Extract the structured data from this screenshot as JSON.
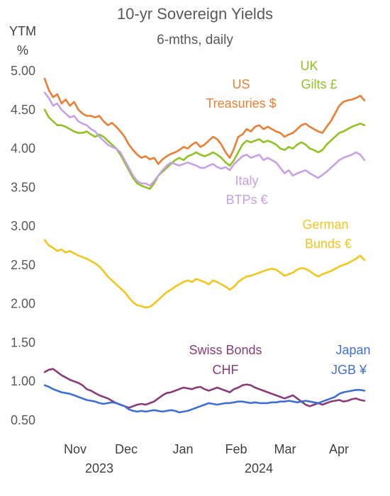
{
  "chart_data": {
    "type": "line",
    "title": "10-yr Sovereign Yields",
    "subtitle": "6-mths, daily",
    "ylabel_lines": [
      "YTM",
      "%"
    ],
    "ylim": [
      0.5,
      5.0
    ],
    "yticks": [
      "5.00",
      "4.50",
      "4.00",
      "3.50",
      "3.00",
      "2.50",
      "2.00",
      "1.50",
      "1.00",
      "0.50"
    ],
    "ytick_values": [
      5.0,
      4.5,
      4.0,
      3.5,
      3.0,
      2.5,
      2.0,
      1.5,
      1.0,
      0.5
    ],
    "month_ticks": [
      "Nov",
      "Dec",
      "Jan",
      "Feb",
      "Mar",
      "Apr"
    ],
    "year_labels": [
      "2023",
      "2024"
    ],
    "grid": false,
    "legend": "inline labels",
    "series": [
      {
        "key": "us",
        "label_lines": [
          "US",
          "Treasuries $"
        ],
        "color": "#ED7D31",
        "values": [
          4.9,
          4.75,
          4.66,
          4.7,
          4.58,
          4.63,
          4.55,
          4.6,
          4.5,
          4.45,
          4.42,
          4.42,
          4.4,
          4.42,
          4.35,
          4.3,
          4.33,
          4.28,
          4.22,
          4.15,
          4.05,
          3.98,
          3.92,
          3.88,
          3.9,
          3.86,
          3.88,
          3.8,
          3.86,
          3.9,
          3.93,
          3.95,
          3.98,
          4.02,
          4.0,
          4.05,
          4.08,
          4.02,
          4.05,
          4.1,
          4.15,
          4.12,
          4.05,
          3.95,
          3.88,
          4.0,
          4.15,
          4.18,
          4.25,
          4.22,
          4.28,
          4.3,
          4.25,
          4.28,
          4.25,
          4.22,
          4.2,
          4.15,
          4.18,
          4.2,
          4.25,
          4.3,
          4.32,
          4.28,
          4.25,
          4.22,
          4.2,
          4.28,
          4.35,
          4.45,
          4.55,
          4.6,
          4.62,
          4.63,
          4.65,
          4.68,
          4.62
        ]
      },
      {
        "key": "uk",
        "label_lines": [
          "UK",
          "Gilts £"
        ],
        "color": "#8FC31F",
        "values": [
          4.5,
          4.4,
          4.35,
          4.3,
          4.3,
          4.28,
          4.25,
          4.22,
          4.2,
          4.2,
          4.22,
          4.18,
          4.15,
          4.18,
          4.15,
          4.1,
          4.05,
          4.0,
          3.92,
          3.82,
          3.72,
          3.62,
          3.55,
          3.52,
          3.5,
          3.48,
          3.55,
          3.65,
          3.7,
          3.75,
          3.8,
          3.85,
          3.88,
          3.85,
          3.9,
          3.92,
          3.95,
          3.92,
          3.9,
          3.92,
          3.95,
          3.92,
          3.88,
          3.82,
          3.78,
          3.85,
          3.95,
          4.05,
          4.1,
          4.08,
          4.1,
          4.12,
          4.08,
          4.1,
          4.08,
          4.05,
          4.0,
          3.98,
          4.02,
          4.0,
          4.05,
          4.08,
          4.05,
          4.0,
          3.98,
          3.95,
          3.98,
          4.05,
          4.1,
          4.15,
          4.2,
          4.22,
          4.25,
          4.28,
          4.3,
          4.32,
          4.3
        ]
      },
      {
        "key": "italy",
        "label_lines": [
          "Italy",
          "BTPs €"
        ],
        "color": "#C9A0E8",
        "values": [
          4.72,
          4.65,
          4.55,
          4.58,
          4.5,
          4.45,
          4.4,
          4.42,
          4.35,
          4.32,
          4.3,
          4.25,
          4.22,
          4.15,
          4.1,
          4.05,
          4.02,
          4.0,
          3.95,
          3.85,
          3.75,
          3.65,
          3.58,
          3.55,
          3.55,
          3.52,
          3.58,
          3.65,
          3.72,
          3.78,
          3.82,
          3.8,
          3.78,
          3.8,
          3.82,
          3.8,
          3.78,
          3.75,
          3.75,
          3.78,
          3.8,
          3.76,
          3.74,
          3.76,
          3.72,
          3.8,
          3.85,
          3.9,
          3.92,
          3.88,
          3.9,
          3.92,
          3.85,
          3.88,
          3.85,
          3.82,
          3.75,
          3.68,
          3.72,
          3.65,
          3.68,
          3.7,
          3.72,
          3.68,
          3.65,
          3.62,
          3.66,
          3.7,
          3.75,
          3.8,
          3.85,
          3.88,
          3.9,
          3.92,
          3.95,
          3.92,
          3.85
        ]
      },
      {
        "key": "germany",
        "label_lines": [
          "German",
          "Bunds €"
        ],
        "color": "#F5C518",
        "values": [
          2.82,
          2.75,
          2.72,
          2.68,
          2.7,
          2.66,
          2.68,
          2.65,
          2.62,
          2.6,
          2.58,
          2.55,
          2.52,
          2.48,
          2.42,
          2.35,
          2.3,
          2.25,
          2.2,
          2.15,
          2.08,
          2.02,
          1.98,
          1.97,
          1.95,
          1.96,
          2.0,
          2.05,
          2.1,
          2.15,
          2.18,
          2.22,
          2.25,
          2.28,
          2.3,
          2.28,
          2.32,
          2.3,
          2.28,
          2.25,
          2.3,
          2.28,
          2.25,
          2.22,
          2.18,
          2.22,
          2.28,
          2.32,
          2.35,
          2.36,
          2.38,
          2.4,
          2.42,
          2.44,
          2.45,
          2.44,
          2.4,
          2.36,
          2.38,
          2.4,
          2.44,
          2.46,
          2.45,
          2.42,
          2.38,
          2.35,
          2.38,
          2.4,
          2.42,
          2.45,
          2.48,
          2.5,
          2.52,
          2.55,
          2.58,
          2.62,
          2.56
        ]
      },
      {
        "key": "swiss",
        "label_lines": [
          "Swiss Bonds",
          "CHF"
        ],
        "color": "#8B3A7B",
        "values": [
          1.12,
          1.15,
          1.16,
          1.12,
          1.08,
          1.05,
          1.02,
          1.0,
          0.98,
          0.95,
          0.9,
          0.88,
          0.85,
          0.82,
          0.8,
          0.78,
          0.75,
          0.72,
          0.7,
          0.68,
          0.66,
          0.68,
          0.7,
          0.71,
          0.7,
          0.72,
          0.74,
          0.78,
          0.82,
          0.85,
          0.86,
          0.88,
          0.9,
          0.92,
          0.91,
          0.9,
          0.92,
          0.93,
          0.9,
          0.88,
          0.9,
          0.92,
          0.9,
          0.88,
          0.86,
          0.9,
          0.92,
          0.95,
          0.96,
          0.95,
          0.92,
          0.9,
          0.88,
          0.86,
          0.84,
          0.82,
          0.8,
          0.78,
          0.8,
          0.82,
          0.78,
          0.74,
          0.7,
          0.68,
          0.7,
          0.72,
          0.7,
          0.72,
          0.74,
          0.75,
          0.76,
          0.74,
          0.75,
          0.77,
          0.78,
          0.76,
          0.75
        ]
      },
      {
        "key": "japan",
        "label_lines": [
          "Japan",
          "JGB ¥"
        ],
        "color": "#3E6FD8",
        "values": [
          0.95,
          0.93,
          0.9,
          0.88,
          0.86,
          0.85,
          0.84,
          0.82,
          0.8,
          0.78,
          0.76,
          0.75,
          0.74,
          0.72,
          0.71,
          0.72,
          0.73,
          0.72,
          0.7,
          0.68,
          0.64,
          0.62,
          0.61,
          0.62,
          0.61,
          0.62,
          0.63,
          0.62,
          0.61,
          0.62,
          0.63,
          0.62,
          0.6,
          0.61,
          0.62,
          0.64,
          0.66,
          0.68,
          0.7,
          0.72,
          0.71,
          0.7,
          0.71,
          0.72,
          0.72,
          0.73,
          0.74,
          0.74,
          0.73,
          0.72,
          0.73,
          0.72,
          0.72,
          0.72,
          0.73,
          0.73,
          0.74,
          0.74,
          0.75,
          0.74,
          0.73,
          0.74,
          0.75,
          0.74,
          0.73,
          0.72,
          0.74,
          0.76,
          0.78,
          0.8,
          0.84,
          0.86,
          0.87,
          0.88,
          0.89,
          0.89,
          0.88
        ]
      }
    ]
  }
}
